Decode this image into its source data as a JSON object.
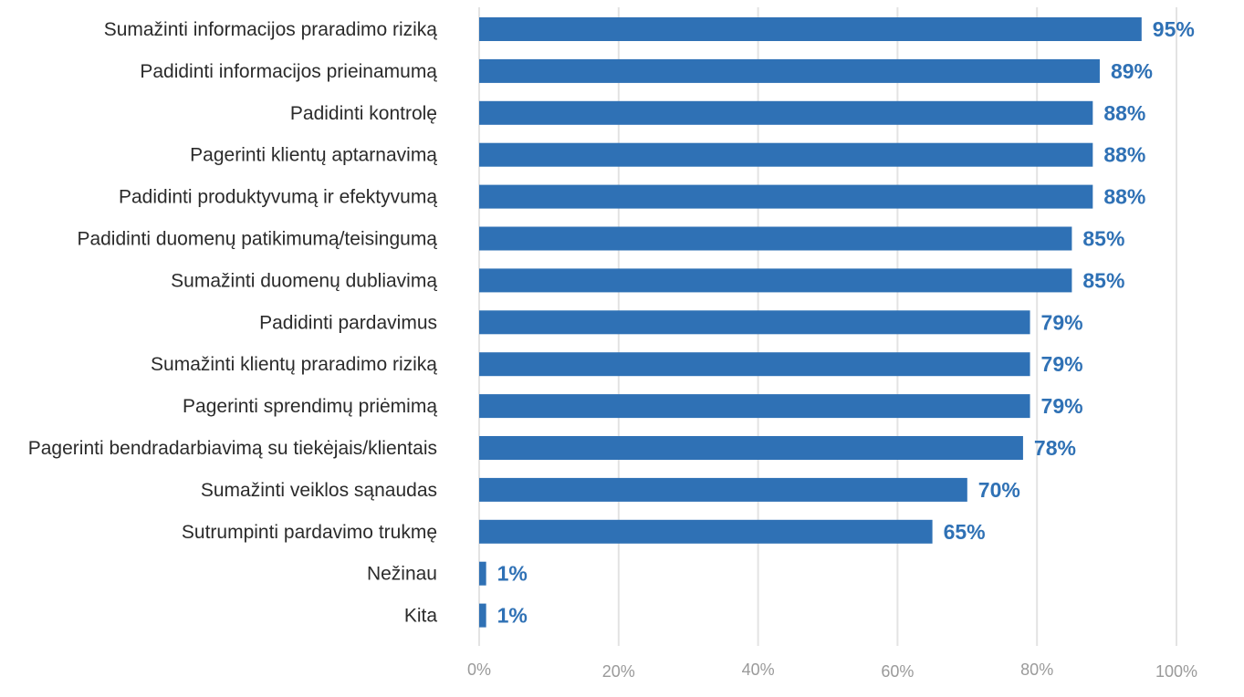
{
  "chart_data": {
    "type": "bar",
    "orientation": "horizontal",
    "categories": [
      "Sumažinti informacijos praradimo riziką",
      "Padidinti informacijos prieinamumą",
      "Padidinti kontrolę",
      "Pagerinti klientų aptarnavimą",
      "Padidinti produktyvumą ir efektyvumą",
      "Padidinti duomenų patikimumą/teisingumą",
      "Sumažinti duomenų dubliavimą",
      "Padidinti pardavimus",
      "Sumažinti klientų praradimo riziką",
      "Pagerinti sprendimų priėmimą",
      "Pagerinti bendradarbiavimą su tiekėjais/klientais",
      "Sumažinti veiklos sąnaudas",
      "Sutrumpinti pardavimo trukmę",
      "Nežinau",
      "Kita"
    ],
    "values": [
      95,
      89,
      88,
      88,
      88,
      85,
      85,
      79,
      79,
      79,
      78,
      70,
      65,
      1,
      1
    ],
    "value_labels": [
      "95%",
      "89%",
      "88%",
      "88%",
      "88%",
      "85%",
      "85%",
      "79%",
      "79%",
      "79%",
      "78%",
      "70%",
      "65%",
      "1%",
      "1%"
    ],
    "xlim": [
      0,
      100
    ],
    "x_ticks": [
      0,
      20,
      40,
      60,
      80,
      100
    ],
    "x_tick_labels": [
      "0%",
      "20%",
      "40%",
      "60%",
      "80%",
      "100%"
    ],
    "grid": "vertical",
    "legend": "none",
    "colors": {
      "bar": "#2f71b5",
      "value_label": "#2f71b5",
      "grid": "#e3e3e3",
      "category_text": "#2b2b2b",
      "tick_text": "#9a9a9a"
    }
  }
}
